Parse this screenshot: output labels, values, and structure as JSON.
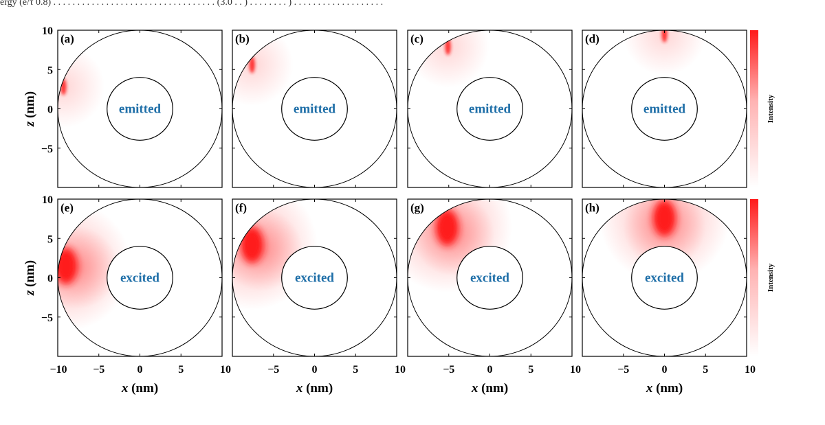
{
  "header": {
    "caption_fragment": "ergy (e/τ 0.8) . . . . . . . . . . . . . . . . . . . . . . . . . . . . . . . . . . (3.0 . . ) . . . . . . . . ) . . . . . . . . . . . . . . . . . . ."
  },
  "colors": {
    "accent": "#ff1a1a",
    "label_blue": "#1f6fa8",
    "axis": "#000000"
  },
  "colorbar": {
    "label": "Intensity",
    "max_color": "#ff1a1a",
    "min_color": "#ffffff"
  },
  "chart_data": [
    {
      "type": "heatmap",
      "panel": "(a)",
      "center_label": "emitted",
      "hotspot": {
        "x": -9.3,
        "z": 2.8
      },
      "spread": "narrow",
      "xlabel": "",
      "ylabel": "z (nm)",
      "xlim": [
        -10,
        10
      ],
      "ylim": [
        -10,
        10
      ],
      "yticks": [
        "10",
        "5",
        "0",
        "−5"
      ],
      "xticks": []
    },
    {
      "type": "heatmap",
      "panel": "(b)",
      "center_label": "emitted",
      "hotspot": {
        "x": -7.6,
        "z": 5.6
      },
      "spread": "narrow",
      "xlabel": "",
      "ylabel": "",
      "xlim": [
        -10,
        10
      ],
      "ylim": [
        -10,
        10
      ],
      "yticks": [],
      "xticks": []
    },
    {
      "type": "heatmap",
      "panel": "(c)",
      "center_label": "emitted",
      "hotspot": {
        "x": -5.1,
        "z": 7.9
      },
      "spread": "narrow",
      "xlabel": "",
      "ylabel": "",
      "xlim": [
        -10,
        10
      ],
      "ylim": [
        -10,
        10
      ],
      "yticks": [],
      "xticks": []
    },
    {
      "type": "heatmap",
      "panel": "(d)",
      "center_label": "emitted",
      "hotspot": {
        "x": 0.0,
        "z": 9.5
      },
      "spread": "narrow",
      "xlabel": "",
      "ylabel": "",
      "xlim": [
        -10,
        10
      ],
      "ylim": [
        -10,
        10
      ],
      "yticks": [],
      "xticks": []
    },
    {
      "type": "heatmap",
      "panel": "(e)",
      "center_label": "excited",
      "hotspot": {
        "x": -9.0,
        "z": 1.5
      },
      "spread": "wide",
      "xlabel": "x (nm)",
      "ylabel": "z (nm)",
      "xlim": [
        -10,
        10
      ],
      "ylim": [
        -10,
        10
      ],
      "yticks": [
        "10",
        "5",
        "0",
        "−5"
      ],
      "xticks": [
        "−10",
        "−5",
        "0",
        "5",
        "10"
      ]
    },
    {
      "type": "heatmap",
      "panel": "(f)",
      "center_label": "excited",
      "hotspot": {
        "x": -7.6,
        "z": 4.2
      },
      "spread": "wide",
      "xlabel": "x (nm)",
      "ylabel": "",
      "xlim": [
        -10,
        10
      ],
      "ylim": [
        -10,
        10
      ],
      "yticks": [],
      "xticks": [
        "−5",
        "0",
        "5",
        "10"
      ]
    },
    {
      "type": "heatmap",
      "panel": "(g)",
      "center_label": "excited",
      "hotspot": {
        "x": -5.2,
        "z": 6.4
      },
      "spread": "wide",
      "xlabel": "x (nm)",
      "ylabel": "",
      "xlim": [
        -10,
        10
      ],
      "ylim": [
        -10,
        10
      ],
      "yticks": [],
      "xticks": [
        "−5",
        "0",
        "5",
        "10"
      ]
    },
    {
      "type": "heatmap",
      "panel": "(h)",
      "center_label": "excited",
      "hotspot": {
        "x": 0.0,
        "z": 7.6
      },
      "spread": "wide",
      "xlabel": "x (nm)",
      "ylabel": "",
      "xlim": [
        -10,
        10
      ],
      "ylim": [
        -10,
        10
      ],
      "yticks": [],
      "xticks": [
        "−5",
        "0",
        "5",
        "10"
      ]
    }
  ]
}
